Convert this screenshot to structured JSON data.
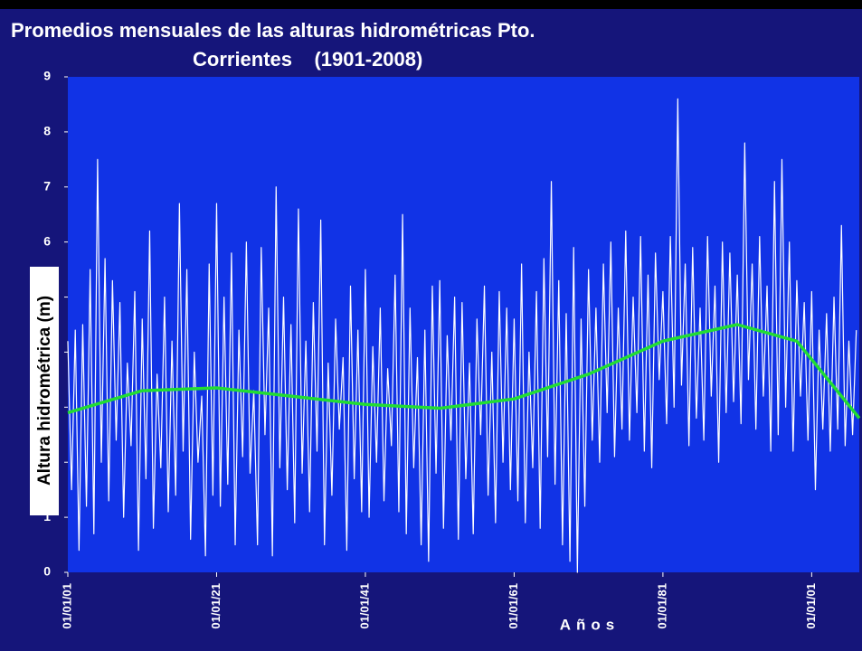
{
  "chart_data": {
    "type": "line",
    "title": [
      "Promedios mensuales de las alturas hidrométricas Pto.",
      "Corrientes    (1901-2008)"
    ],
    "y_label": "Altura hidrométrica (m)",
    "x_label": "Años",
    "xlim": [
      1901,
      2007.4
    ],
    "ylim": [
      0,
      9
    ],
    "yticks": [
      0,
      1,
      2,
      3,
      4,
      5,
      6,
      7,
      8,
      9
    ],
    "xticks": [
      {
        "value": 1901,
        "label": "01/01/01"
      },
      {
        "value": 1921,
        "label": "01/01/21"
      },
      {
        "value": 1941,
        "label": "01/01/41"
      },
      {
        "value": 1961,
        "label": "01/01/61"
      },
      {
        "value": 1981,
        "label": "01/01/81"
      },
      {
        "value": 2001,
        "label": "01/01/01"
      }
    ],
    "series": [
      {
        "color": "#ffffff",
        "x": [
          1901,
          1901.5,
          1902,
          1902.5,
          1903,
          1903.5,
          1904,
          1904.5,
          1905,
          1905.5,
          1906,
          1906.5,
          1907,
          1907.5,
          1908,
          1908.5,
          1909,
          1909.5,
          1910,
          1910.5,
          1911,
          1911.5,
          1912,
          1912.5,
          1913,
          1913.5,
          1914,
          1914.5,
          1915,
          1915.5,
          1916,
          1916.5,
          1917,
          1917.5,
          1918,
          1918.5,
          1919,
          1919.5,
          1920,
          1920.5,
          1921,
          1921.5,
          1922,
          1922.5,
          1923,
          1923.5,
          1924,
          1924.5,
          1925,
          1925.5,
          1926,
          1926.5,
          1927,
          1927.5,
          1928,
          1928.5,
          1929,
          1929.5,
          1930,
          1930.5,
          1931,
          1931.5,
          1932,
          1932.5,
          1933,
          1933.5,
          1934,
          1934.5,
          1935,
          1935.5,
          1936,
          1936.5,
          1937,
          1937.5,
          1938,
          1938.5,
          1939,
          1939.5,
          1940,
          1940.5,
          1941,
          1941.5,
          1942,
          1942.5,
          1943,
          1943.5,
          1944,
          1944.5,
          1945,
          1945.5,
          1946,
          1946.5,
          1947,
          1947.5,
          1948,
          1948.5,
          1949,
          1949.5,
          1950,
          1950.5,
          1951,
          1951.5,
          1952,
          1952.5,
          1953,
          1953.5,
          1954,
          1954.5,
          1955,
          1955.5,
          1956,
          1956.5,
          1957,
          1957.5,
          1958,
          1958.5,
          1959,
          1959.5,
          1960,
          1960.5,
          1961,
          1961.5,
          1962,
          1962.5,
          1963,
          1963.5,
          1964,
          1964.5,
          1965,
          1965.5,
          1966,
          1966.5,
          1967,
          1967.5,
          1968,
          1968.5,
          1969,
          1969.5,
          1970,
          1970.5,
          1971,
          1971.5,
          1972,
          1972.5,
          1973,
          1973.5,
          1974,
          1974.5,
          1975,
          1975.5,
          1976,
          1976.5,
          1977,
          1977.5,
          1978,
          1978.5,
          1979,
          1979.5,
          1980,
          1980.5,
          1981,
          1981.5,
          1982,
          1982.5,
          1983,
          1983.5,
          1984,
          1984.5,
          1985,
          1985.5,
          1986,
          1986.5,
          1987,
          1987.5,
          1988,
          1988.5,
          1989,
          1989.5,
          1990,
          1990.5,
          1991,
          1991.5,
          1992,
          1992.5,
          1993,
          1993.5,
          1994,
          1994.5,
          1995,
          1995.5,
          1996,
          1996.5,
          1997,
          1997.5,
          1998,
          1998.5,
          1999,
          1999.5,
          2000,
          2000.5,
          2001,
          2001.5,
          2002,
          2002.5,
          2003,
          2003.5,
          2004,
          2004.5,
          2005,
          2005.5,
          2006,
          2006.5,
          2007
        ],
        "values": [
          4.2,
          1.5,
          4.4,
          0.4,
          4.5,
          1.2,
          5.5,
          0.7,
          7.5,
          2.0,
          5.7,
          1.3,
          5.3,
          2.4,
          4.9,
          1.0,
          3.8,
          2.3,
          5.1,
          0.4,
          4.6,
          1.7,
          6.2,
          0.8,
          3.6,
          1.9,
          5.0,
          1.1,
          4.2,
          1.4,
          6.7,
          2.2,
          5.5,
          0.6,
          4.0,
          2.0,
          3.2,
          0.3,
          5.6,
          1.4,
          6.7,
          1.2,
          5.0,
          1.6,
          5.8,
          0.5,
          4.4,
          2.1,
          6.0,
          1.8,
          3.3,
          0.5,
          5.9,
          2.5,
          4.8,
          0.3,
          7.0,
          1.9,
          5.0,
          1.5,
          4.5,
          0.9,
          6.6,
          1.8,
          4.2,
          1.1,
          4.9,
          2.2,
          6.4,
          0.5,
          3.8,
          1.4,
          4.6,
          2.6,
          3.9,
          0.4,
          5.2,
          1.7,
          4.4,
          1.1,
          5.5,
          1.0,
          4.1,
          2.0,
          4.8,
          1.3,
          3.7,
          2.3,
          5.4,
          1.1,
          6.5,
          0.7,
          4.8,
          1.9,
          3.9,
          0.5,
          4.4,
          0.2,
          5.2,
          1.8,
          5.3,
          0.8,
          4.3,
          2.4,
          5.0,
          0.6,
          4.9,
          1.7,
          3.8,
          0.7,
          4.6,
          2.5,
          5.2,
          1.4,
          4.0,
          0.9,
          5.1,
          2.0,
          4.8,
          1.5,
          4.6,
          1.3,
          5.6,
          0.9,
          4.0,
          1.9,
          5.1,
          0.8,
          5.7,
          2.1,
          7.1,
          1.6,
          5.3,
          0.5,
          4.7,
          0.2,
          5.9,
          0.0,
          4.6,
          1.2,
          5.5,
          2.4,
          4.8,
          2.0,
          5.6,
          2.9,
          6.0,
          2.1,
          4.8,
          2.6,
          6.2,
          2.4,
          5.0,
          2.9,
          6.1,
          2.2,
          5.4,
          1.9,
          5.8,
          3.5,
          5.1,
          2.7,
          6.1,
          3.0,
          8.6,
          3.4,
          5.6,
          2.3,
          5.9,
          2.8,
          4.8,
          2.4,
          6.1,
          3.2,
          5.2,
          2.0,
          6.0,
          2.9,
          5.8,
          3.1,
          5.4,
          2.7,
          7.8,
          3.5,
          5.6,
          2.6,
          6.1,
          3.2,
          5.2,
          2.2,
          7.1,
          2.5,
          7.5,
          3.0,
          6.0,
          2.2,
          5.3,
          3.2,
          4.9,
          2.4,
          5.1,
          1.5,
          4.4,
          2.6,
          4.7,
          2.2,
          5.0,
          2.6,
          6.3,
          2.3,
          4.2,
          2.5,
          4.4
        ]
      },
      {
        "color": "#22dd33",
        "x": [
          1901,
          1911,
          1921,
          1931,
          1941,
          1951,
          1961,
          1971,
          1981,
          1991,
          1999,
          2007.4
        ],
        "values": [
          2.9,
          3.3,
          3.35,
          3.2,
          3.05,
          2.98,
          3.15,
          3.6,
          4.2,
          4.5,
          4.2,
          2.8
        ]
      }
    ]
  }
}
